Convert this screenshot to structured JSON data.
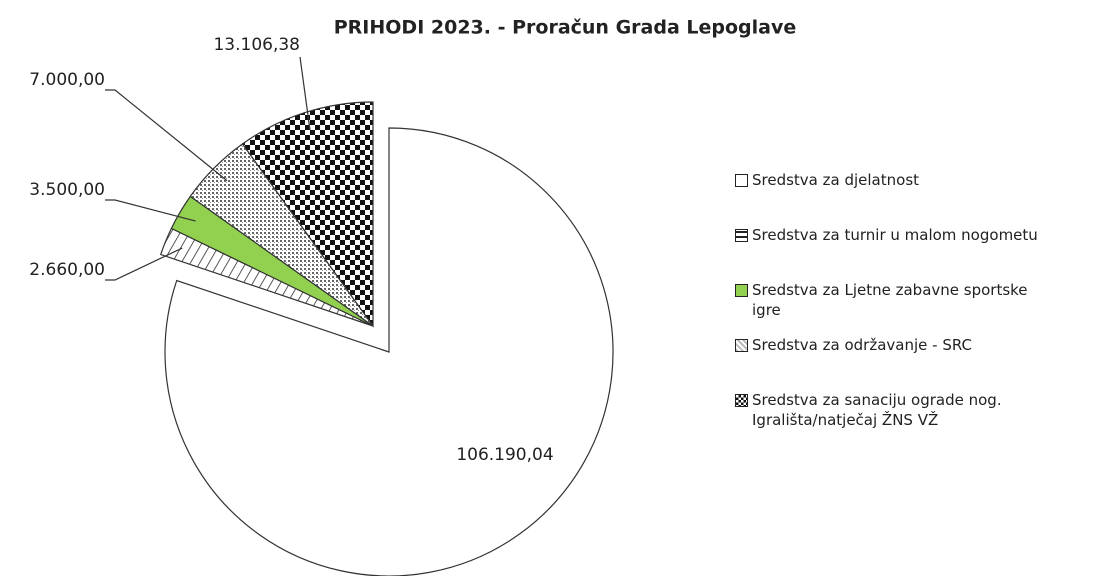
{
  "chart_data": {
    "type": "pie",
    "title": "PRIHODI 2023. - Proračun Grada Lepoglave",
    "categories": [
      "Sredstva za djelatnost",
      "Sredstva za turnir u malom nogometu",
      "Sredstva za Ljetne zabavne sportske igre",
      "Sredstva za održavanje - SRC",
      "Sredstva za sanaciju ograde nog. Igrališta/natječaj ŽNS VŽ"
    ],
    "values": [
      106190.04,
      2660,
      3500,
      7000,
      13106.38
    ],
    "value_labels": [
      "106.190,04",
      "2.660,00",
      "3.500,00",
      "7.000,00",
      "13.106,38"
    ],
    "colors": [
      "#ffffff",
      "#ffffff",
      "#92d050",
      "#d0d0d0",
      "#000000"
    ],
    "legend": "right"
  }
}
